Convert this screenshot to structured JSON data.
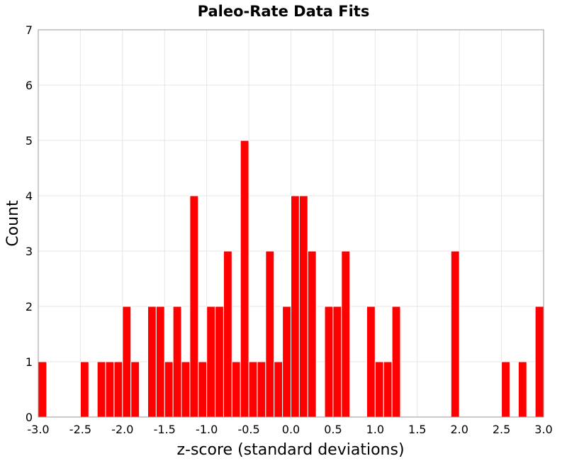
{
  "chart_data": {
    "type": "bar",
    "title": "Paleo-Rate Data Fits",
    "xlabel": "z-score (standard deviations)",
    "ylabel": "Count",
    "xlim": [
      -3.0,
      3.0
    ],
    "ylim": [
      0,
      7
    ],
    "bin_width": 0.1,
    "x_ticks": [
      "-3.0",
      "-2.5",
      "-2.0",
      "-1.5",
      "-1.0",
      "-0.5",
      "0.0",
      "0.5",
      "1.0",
      "1.5",
      "2.0",
      "2.5",
      "3.0"
    ],
    "y_ticks": [
      "0",
      "1",
      "2",
      "3",
      "4",
      "5",
      "6",
      "7"
    ],
    "grid": true,
    "bar_color": "#ff0000",
    "bins": [
      {
        "x": -2.95,
        "count": 1
      },
      {
        "x": -2.45,
        "count": 1
      },
      {
        "x": -2.25,
        "count": 1
      },
      {
        "x": -2.15,
        "count": 1
      },
      {
        "x": -2.05,
        "count": 1
      },
      {
        "x": -1.95,
        "count": 2
      },
      {
        "x": -1.85,
        "count": 1
      },
      {
        "x": -1.65,
        "count": 2
      },
      {
        "x": -1.55,
        "count": 2
      },
      {
        "x": -1.45,
        "count": 1
      },
      {
        "x": -1.35,
        "count": 2
      },
      {
        "x": -1.25,
        "count": 1
      },
      {
        "x": -1.15,
        "count": 4
      },
      {
        "x": -1.05,
        "count": 1
      },
      {
        "x": -0.95,
        "count": 2
      },
      {
        "x": -0.85,
        "count": 2
      },
      {
        "x": -0.75,
        "count": 3
      },
      {
        "x": -0.65,
        "count": 1
      },
      {
        "x": -0.55,
        "count": 5
      },
      {
        "x": -0.45,
        "count": 1
      },
      {
        "x": -0.35,
        "count": 1
      },
      {
        "x": -0.25,
        "count": 3
      },
      {
        "x": -0.15,
        "count": 1
      },
      {
        "x": -0.05,
        "count": 2
      },
      {
        "x": 0.05,
        "count": 4
      },
      {
        "x": 0.15,
        "count": 4
      },
      {
        "x": 0.25,
        "count": 3
      },
      {
        "x": 0.45,
        "count": 2
      },
      {
        "x": 0.55,
        "count": 2
      },
      {
        "x": 0.65,
        "count": 3
      },
      {
        "x": 0.95,
        "count": 2
      },
      {
        "x": 1.05,
        "count": 1
      },
      {
        "x": 1.15,
        "count": 1
      },
      {
        "x": 1.25,
        "count": 2
      },
      {
        "x": 1.95,
        "count": 3
      },
      {
        "x": 2.55,
        "count": 1
      },
      {
        "x": 2.75,
        "count": 1
      },
      {
        "x": 2.95,
        "count": 2
      }
    ]
  }
}
